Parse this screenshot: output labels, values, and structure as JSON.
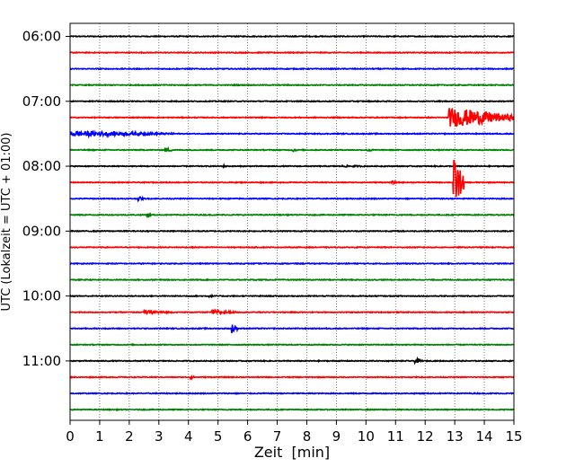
{
  "chart_data": {
    "type": "line",
    "subtype": "helicorder",
    "xlabel": "Zeit  [min]",
    "ylabel": "UTC (Lokalzeit = UTC + 01:00)",
    "xlim": [
      0,
      15
    ],
    "x_ticks": [
      0,
      1,
      2,
      3,
      4,
      5,
      6,
      7,
      8,
      9,
      10,
      11,
      12,
      13,
      14,
      15
    ],
    "y_tick_labels": [
      "06:00",
      "07:00",
      "08:00",
      "09:00",
      "10:00",
      "11:00"
    ],
    "trace_interval_min": 15,
    "first_trace": "06:00",
    "trace_count": 24,
    "trace_colors": [
      "#000000",
      "#ff0000",
      "#0000ff",
      "#008000"
    ],
    "grid": "vertical dotted lines at each minute",
    "events": [
      {
        "trace": "07:30",
        "start_min": 0.0,
        "end_min": 3.5,
        "peak": 0.55
      },
      {
        "trace": "07:45",
        "start_min": 3.2,
        "end_min": 3.5,
        "peak": 0.45
      },
      {
        "trace": "07:45",
        "start_min": 7.5,
        "end_min": 7.7,
        "peak": 0.4
      },
      {
        "trace": "07:45",
        "start_min": 10.05,
        "end_min": 10.25,
        "peak": 0.4
      },
      {
        "trace": "08:00",
        "start_min": 5.15,
        "end_min": 5.3,
        "peak": 0.3
      },
      {
        "trace": "08:00",
        "start_min": 9.2,
        "end_min": 10.3,
        "peak": 0.2
      },
      {
        "trace": "08:15",
        "start_min": 10.85,
        "end_min": 11.05,
        "peak": 0.35
      },
      {
        "trace": "08:30",
        "start_min": 2.3,
        "end_min": 2.5,
        "peak": 0.45
      },
      {
        "trace": "08:45",
        "start_min": 2.6,
        "end_min": 2.75,
        "peak": 0.4
      },
      {
        "trace": "10:00",
        "start_min": 4.7,
        "end_min": 4.85,
        "peak": 0.35
      },
      {
        "trace": "10:15",
        "start_min": 2.5,
        "end_min": 3.5,
        "peak": 0.4
      },
      {
        "trace": "10:15",
        "start_min": 4.8,
        "end_min": 5.6,
        "peak": 0.5
      },
      {
        "trace": "10:30",
        "start_min": 5.45,
        "end_min": 5.65,
        "peak": 1.0
      },
      {
        "trace": "11:00",
        "start_min": 11.65,
        "end_min": 11.9,
        "peak": 0.55
      },
      {
        "trace": "11:15",
        "start_min": 4.05,
        "end_min": 4.25,
        "peak": 0.35
      },
      {
        "trace": "07:15",
        "start_min": 12.8,
        "end_min": 15.0,
        "peak": 2.0
      },
      {
        "trace": "08:15",
        "start_min": 12.95,
        "end_min": 13.3,
        "peak": 5.0
      }
    ]
  }
}
